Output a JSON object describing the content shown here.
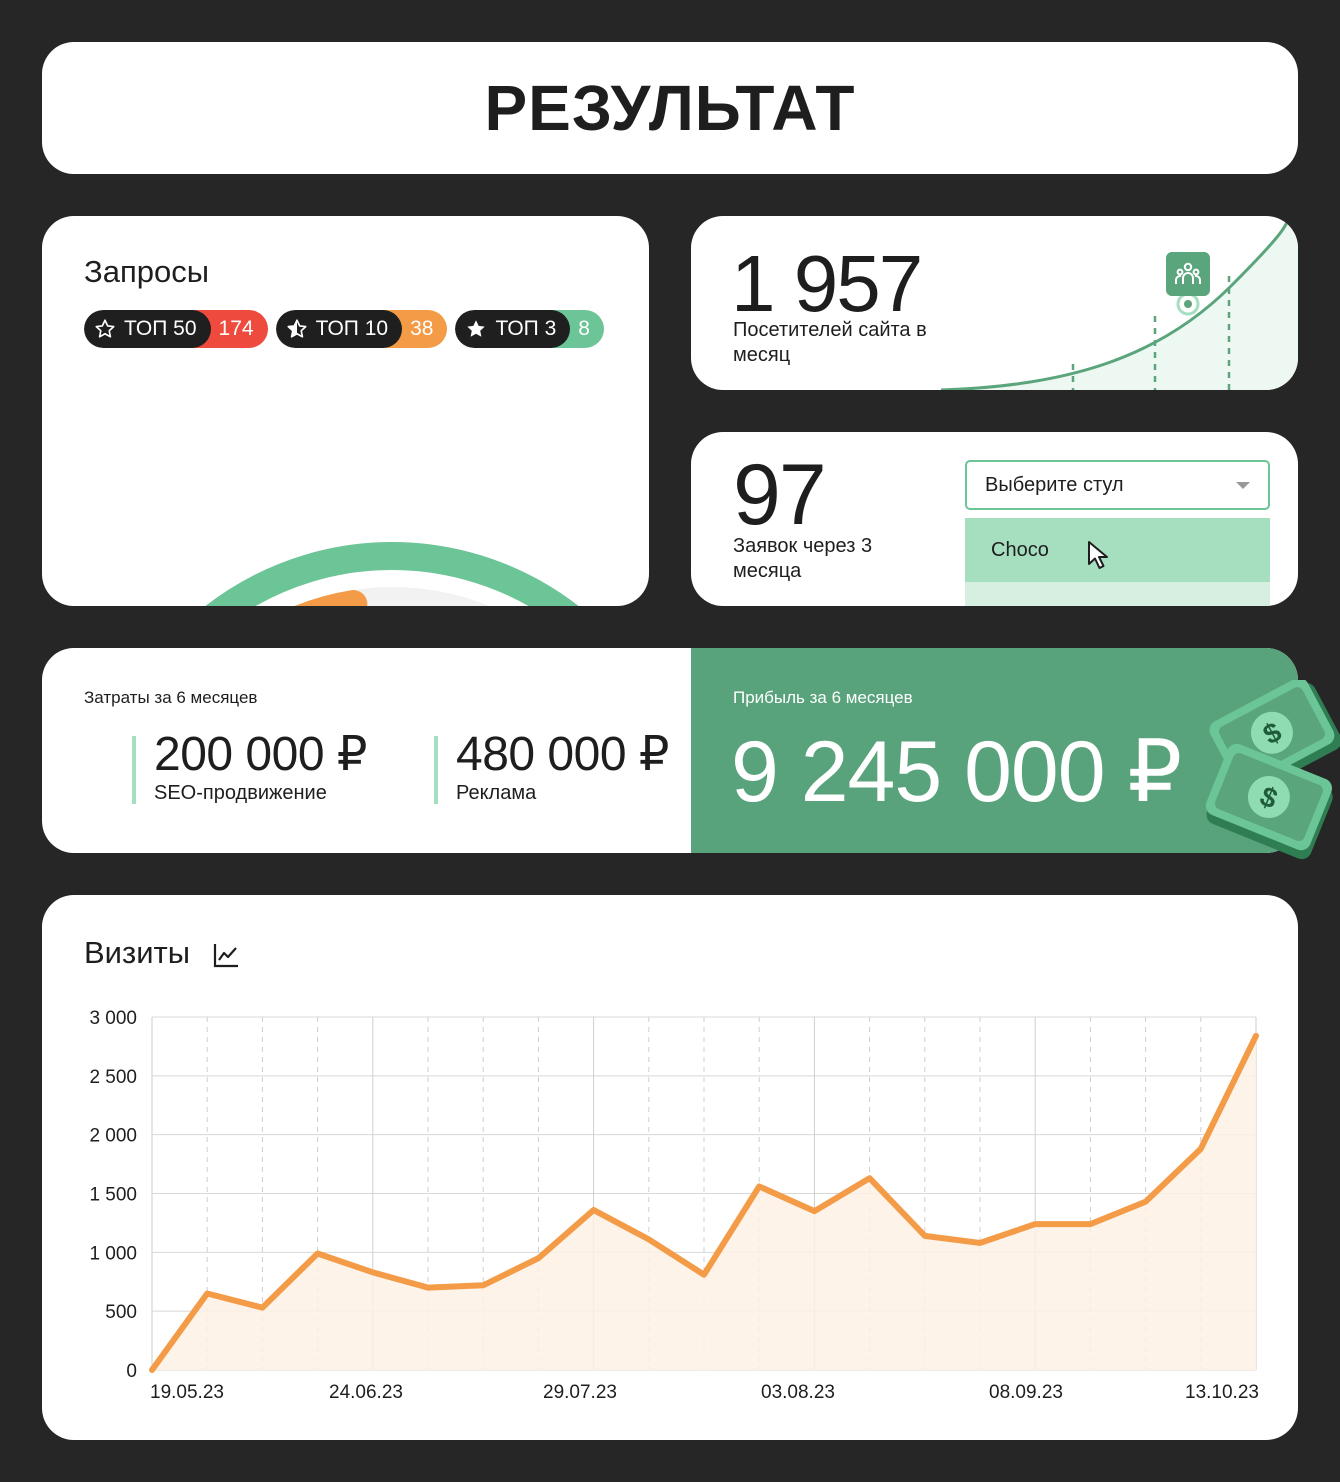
{
  "header": {
    "title": "РЕЗУЛЬТАТ"
  },
  "queries": {
    "title": "Запросы",
    "pills": [
      {
        "label": "ТОП 50",
        "count": "174",
        "color": "#ee4b3e",
        "icon": "star-outline-icon"
      },
      {
        "label": "ТОП 10",
        "count": "38",
        "color": "#f39b47",
        "icon": "star-half-icon"
      },
      {
        "label": "ТОП 3",
        "count": "8",
        "color": "#6cc596",
        "icon": "star-filled-icon"
      }
    ],
    "gauge_fractions": {
      "top50": 0.22,
      "top10": 0.48,
      "top3": 0.85
    }
  },
  "visitors": {
    "value": "1 957",
    "label": "Посетителей сайта в месяц",
    "icon": "people-icon"
  },
  "leads": {
    "value": "97",
    "label": "Заявок через 3 месяца",
    "select_placeholder": "Выберите стул",
    "option": "Choco"
  },
  "costs": {
    "title": "Затраты за 6 месяцев",
    "items": [
      {
        "value": "200 000 ₽",
        "label": "SEO-продвижение"
      },
      {
        "value": "480 000 ₽",
        "label": "Реклама"
      }
    ]
  },
  "profit": {
    "title": "Прибыль за 6 месяцев",
    "value": "9 245 000 ₽",
    "icon": "money-icon"
  },
  "visits": {
    "title": "Визиты",
    "icon": "line-chart-icon"
  },
  "chart_data": {
    "type": "area",
    "title": "Визиты",
    "xlabel": "",
    "ylabel": "",
    "ylim": [
      0,
      3000
    ],
    "yticks": [
      "0",
      "500",
      "1 000",
      "1 500",
      "2 000",
      "2 500",
      "3 000"
    ],
    "xtick_labels": [
      "19.05.23",
      "24.06.23",
      "29.07.23",
      "03.08.23",
      "08.09.23",
      "13.10.23"
    ],
    "grid": true,
    "color": "#f39b47",
    "series": [
      {
        "values": [
          0,
          650,
          530,
          990,
          830,
          700,
          720,
          950,
          1360,
          1110,
          810,
          1560,
          1350,
          1630,
          1140,
          1080,
          1240,
          1240,
          1430,
          1880,
          2840
        ]
      }
    ]
  }
}
